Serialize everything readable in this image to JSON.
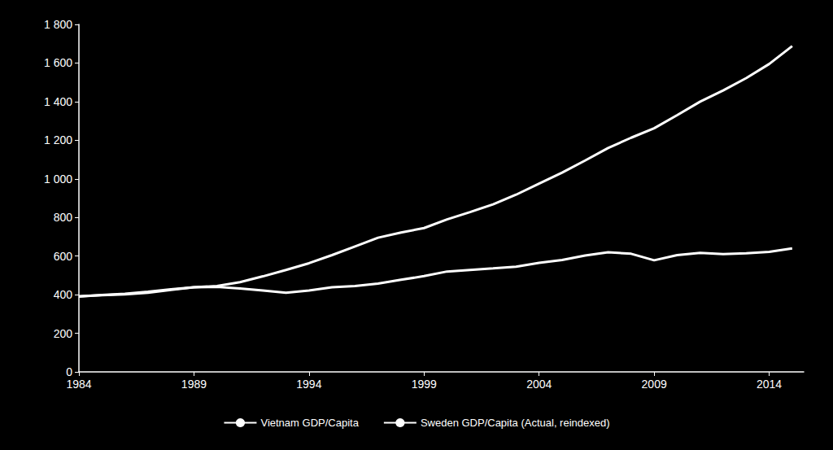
{
  "chart_data": {
    "type": "line",
    "x": [
      1984,
      1985,
      1986,
      1987,
      1988,
      1989,
      1990,
      1991,
      1992,
      1993,
      1994,
      1995,
      1996,
      1997,
      1998,
      1999,
      2000,
      2001,
      2002,
      2003,
      2004,
      2005,
      2006,
      2007,
      2008,
      2009,
      2010,
      2011,
      2012,
      2013,
      2014,
      2015
    ],
    "series": [
      {
        "name": "Vietnam GDP/Capita",
        "color": "#ffffff",
        "values": [
          390,
          398,
          405,
          415,
          428,
          438,
          445,
          465,
          495,
          528,
          563,
          605,
          650,
          695,
          722,
          745,
          790,
          828,
          868,
          918,
          975,
          1032,
          1095,
          1160,
          1213,
          1262,
          1330,
          1400,
          1458,
          1522,
          1595,
          1688
        ]
      },
      {
        "name": "Sweden GDP/Capita (Actual, reindexed)",
        "color": "#ffffff",
        "values": [
          392,
          397,
          402,
          410,
          425,
          438,
          440,
          432,
          422,
          410,
          422,
          438,
          445,
          457,
          477,
          496,
          520,
          528,
          536,
          545,
          565,
          580,
          603,
          620,
          612,
          578,
          605,
          617,
          610,
          614,
          622,
          640
        ]
      }
    ],
    "xlim": [
      1984,
      2015.5
    ],
    "xticks": [
      1984,
      1989,
      1994,
      1999,
      2004,
      2009,
      2014
    ],
    "ylim": [
      0,
      1800
    ],
    "yticks": [
      0,
      200,
      400,
      600,
      800,
      {
        "value": 1000,
        "label": "1 000"
      },
      {
        "value": 1200,
        "label": "1 200"
      },
      {
        "value": 1400,
        "label": "1 400"
      },
      {
        "value": 1600,
        "label": "1 600"
      },
      {
        "value": 1800,
        "label": "1 800"
      }
    ],
    "grid": false,
    "legend": "bottom"
  }
}
